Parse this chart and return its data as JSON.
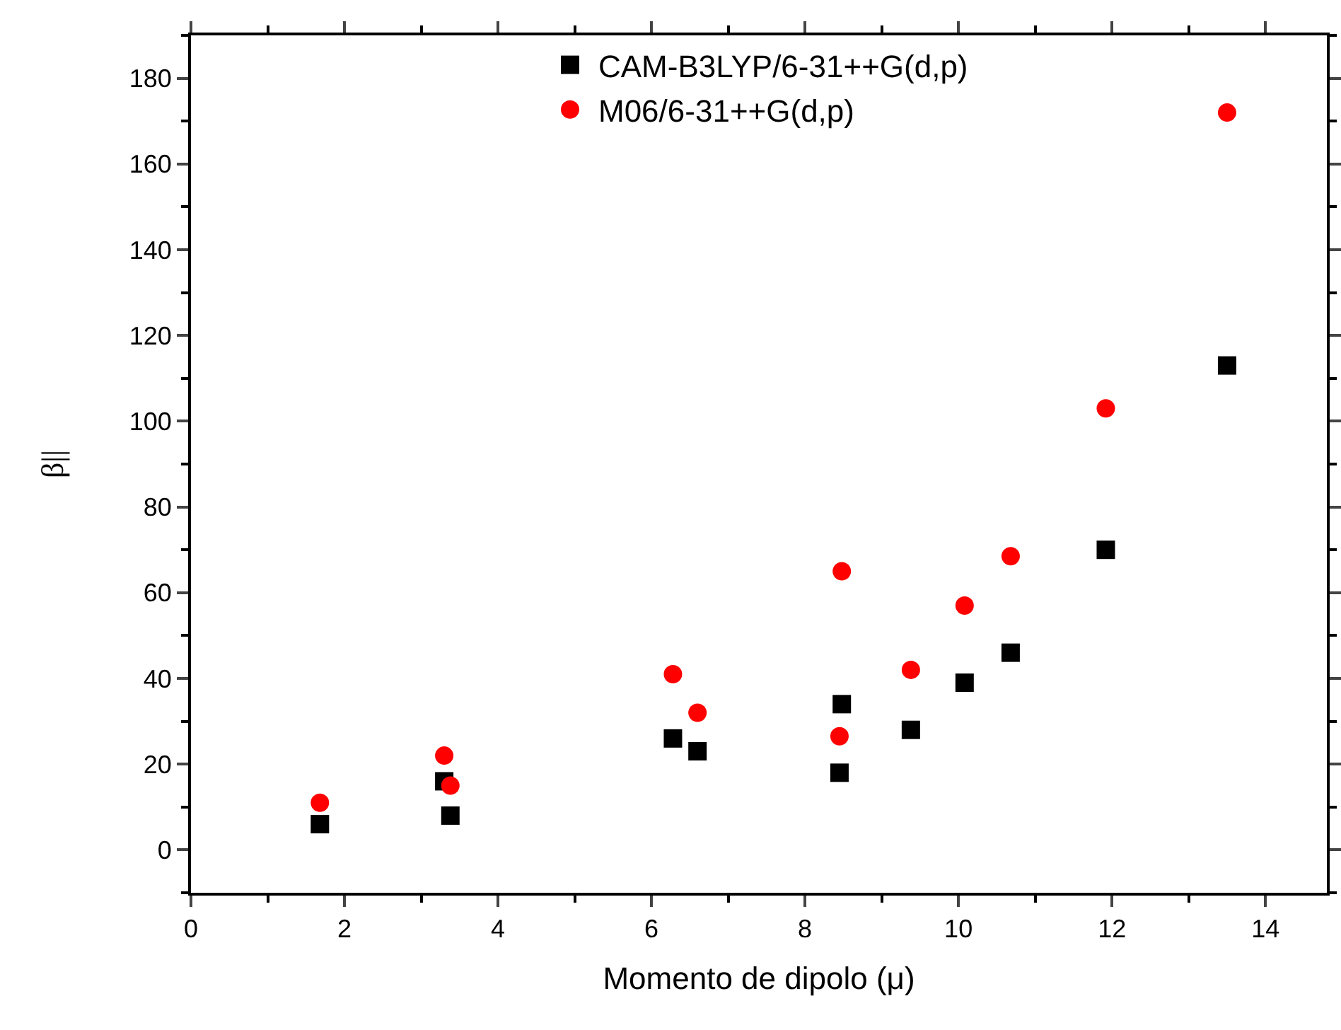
{
  "chart_data": {
    "type": "scatter",
    "xlabel": "Momento de dipolo (μ)",
    "ylabel": "β||",
    "xlim": [
      0,
      14.8
    ],
    "xticks": [
      0,
      2,
      4,
      6,
      8,
      10,
      12,
      14
    ],
    "ylim": [
      -10,
      190
    ],
    "yticks": [
      0,
      20,
      40,
      60,
      80,
      100,
      120,
      140,
      160,
      180
    ],
    "legend": "top",
    "series": [
      {
        "name": "CAM-B3LYP/6-31++G(d,p)",
        "color": "#000000",
        "marker": "square",
        "x": [
          1.68,
          3.3,
          3.38,
          6.28,
          6.6,
          8.45,
          8.48,
          9.38,
          10.08,
          10.68,
          11.92,
          13.5
        ],
        "values": [
          6,
          16,
          8,
          26,
          23,
          18,
          34,
          28,
          39,
          46,
          70,
          113
        ]
      },
      {
        "name": "M06/6-31++G(d,p)",
        "color": "#ff0000",
        "marker": "circle",
        "x": [
          1.68,
          3.3,
          3.38,
          6.28,
          6.6,
          8.45,
          8.48,
          9.38,
          10.08,
          10.68,
          11.92,
          13.5
        ],
        "values": [
          11,
          22,
          15,
          41,
          32,
          26.5,
          65,
          42,
          57,
          68.5,
          103,
          172
        ]
      }
    ]
  }
}
